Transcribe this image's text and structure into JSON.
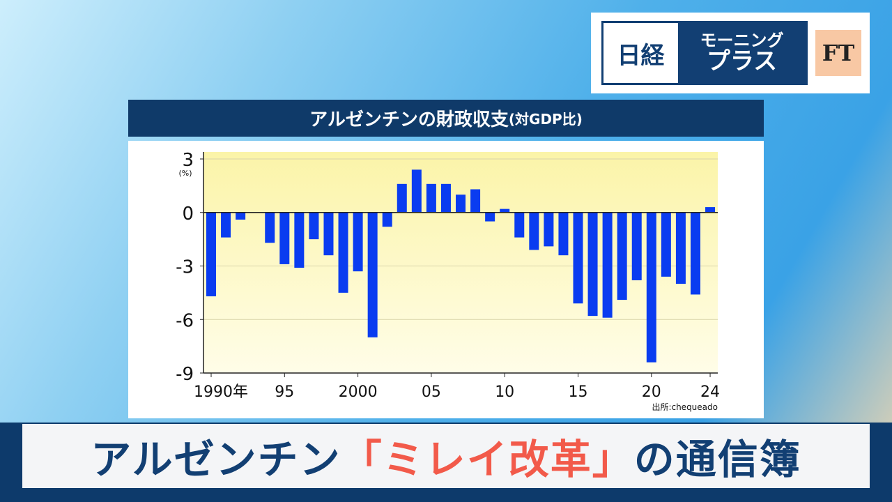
{
  "logo": {
    "nikkei": "日経",
    "program_line1": "モーニング",
    "program_line2": "プラス",
    "ft": "FT"
  },
  "caption": {
    "part1": "アルゼンチン",
    "part2": "「ミレイ改革」",
    "part3": "の通信簿"
  },
  "colors": {
    "bar": "#0a3cf0",
    "navy": "#0f3a69",
    "accent": "#f25a4a"
  },
  "chart_data": {
    "type": "bar",
    "title": "アルゼンチンの財政収支",
    "subtitle": "(対GDP比)",
    "ylabel": "(%)",
    "source": "出所:chequeado",
    "ylim": [
      -9,
      3
    ],
    "yticks": [
      "3",
      "0",
      "-3",
      "-6",
      "-9"
    ],
    "ytick_values": [
      3,
      0,
      -3,
      -6,
      -9
    ],
    "xtick_labels": [
      {
        "year": 1990,
        "label": "1990年"
      },
      {
        "year": 1995,
        "label": "95"
      },
      {
        "year": 2000,
        "label": "2000"
      },
      {
        "year": 2005,
        "label": "05"
      },
      {
        "year": 2010,
        "label": "10"
      },
      {
        "year": 2015,
        "label": "15"
      },
      {
        "year": 2020,
        "label": "20"
      },
      {
        "year": 2024,
        "label": "24"
      }
    ],
    "categories": [
      1990,
      1991,
      1992,
      1993,
      1994,
      1995,
      1996,
      1997,
      1998,
      1999,
      2000,
      2001,
      2002,
      2003,
      2004,
      2005,
      2006,
      2007,
      2008,
      2009,
      2010,
      2011,
      2012,
      2013,
      2014,
      2015,
      2016,
      2017,
      2018,
      2019,
      2020,
      2021,
      2022,
      2023,
      2024
    ],
    "values": [
      -4.7,
      -1.4,
      -0.4,
      0,
      -1.7,
      -2.9,
      -3.1,
      -1.5,
      -2.4,
      -4.5,
      -3.3,
      -7.0,
      -0.8,
      1.6,
      2.4,
      1.6,
      1.6,
      1.0,
      1.3,
      -0.5,
      0.2,
      -1.4,
      -2.1,
      -1.9,
      -2.4,
      -5.1,
      -5.8,
      -5.9,
      -4.9,
      -3.8,
      -8.4,
      -3.6,
      -4.0,
      -4.6,
      0.3
    ],
    "grid": true
  }
}
